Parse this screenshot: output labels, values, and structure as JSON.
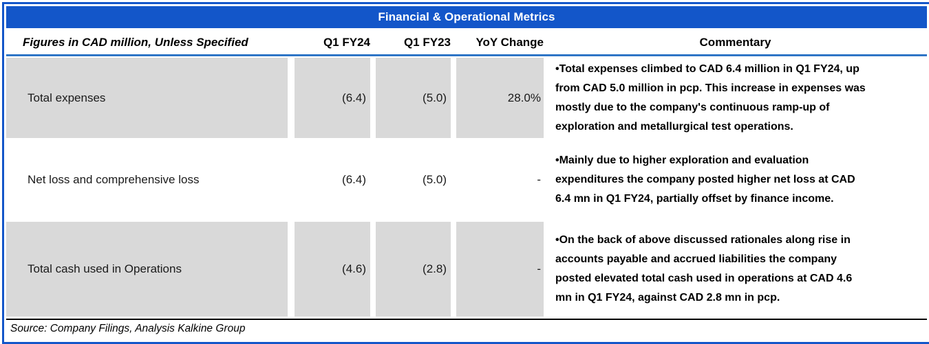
{
  "title": "Financial & Operational Metrics",
  "header": {
    "label": "Figures in CAD million, Unless Specified",
    "col_q1fy24": "Q1 FY24",
    "col_q1fy23": "Q1 FY23",
    "col_yoy": "YoY Change",
    "col_commentary": "Commentary"
  },
  "rows": [
    {
      "metric": "Total expenses",
      "q1fy24": "(6.4)",
      "q1fy23": "(5.0)",
      "yoy": "28.0%",
      "shaded": true,
      "commentary": "•Total expenses climbed to CAD 6.4 million in Q1 FY24, up\nfrom CAD 5.0 million in pcp. This increase in expenses was\nmostly due to the company's continuous ramp-up of\nexploration and metallurgical test operations."
    },
    {
      "metric": "Net loss and comprehensive loss",
      "q1fy24": "(6.4)",
      "q1fy23": "(5.0)",
      "yoy": "-",
      "shaded": false,
      "commentary": "•Mainly due to higher exploration and evaluation\nexpenditures the company posted higher net loss at CAD\n6.4 mn in Q1 FY24, partially offset by finance income."
    },
    {
      "metric": "Total cash used in Operations",
      "q1fy24": "(4.6)",
      "q1fy23": "(2.8)",
      "yoy": "-",
      "shaded": true,
      "commentary": "•On the back of above discussed rationales along rise in\naccounts payable and accrued liabilities the company\nposted elevated total cash used in operations at CAD 4.6\nmn in Q1 FY24, against CAD 2.8 mn in pcp."
    }
  ],
  "footer": {
    "source": "Source: Company Filings, Analysis Kalkine Group"
  },
  "colors": {
    "accent_blue": "#1356c9",
    "separator_blue": "#2e75c6",
    "cell_gray": "#d9d9d9",
    "title_text": "#ffffff"
  }
}
